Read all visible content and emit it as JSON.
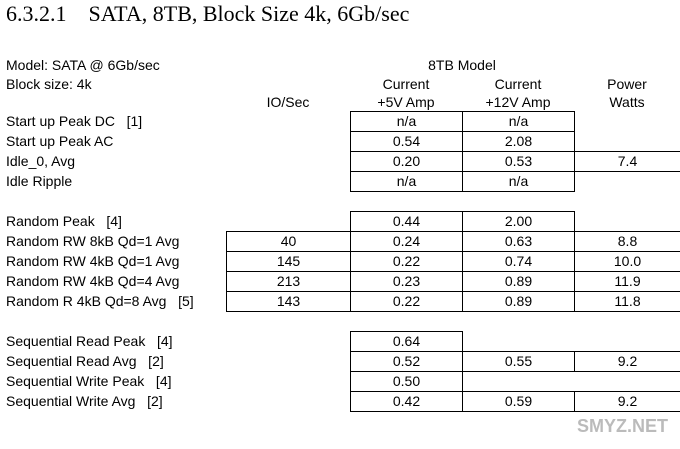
{
  "title": "6.3.2.1    SATA, 8TB, Block Size 4k, 6Gb/sec",
  "header": {
    "model": "Model: SATA @ 6Gb/sec",
    "group": "8TB Model",
    "block": "Block size: 4k",
    "columns": [
      {
        "top": null,
        "bottom": "IO/Sec"
      },
      {
        "top": "Current",
        "bottom": "+5V Amp"
      },
      {
        "top": "Current",
        "bottom": "+12V Amp"
      },
      {
        "top": "Power",
        "bottom": "Watts"
      }
    ]
  },
  "groups": [
    [
      {
        "label": "Start up Peak DC   [1]",
        "cells": [
          null,
          "n/a",
          "n/a",
          null
        ]
      },
      {
        "label": "Start up Peak AC",
        "cells": [
          null,
          "0.54",
          "2.08",
          null
        ]
      },
      {
        "label": "Idle_0, Avg",
        "cells": [
          null,
          "0.20",
          "0.53",
          "7.4"
        ]
      },
      {
        "label": "Idle Ripple",
        "cells": [
          null,
          "n/a",
          "n/a",
          null
        ]
      }
    ],
    [
      {
        "label": "Random Peak   [4]",
        "cells": [
          null,
          "0.44",
          "2.00",
          null
        ]
      },
      {
        "label": "Random RW 8kB Qd=1 Avg",
        "cells": [
          "40",
          "0.24",
          "0.63",
          "8.8"
        ]
      },
      {
        "label": "Random RW 4kB Qd=1 Avg",
        "cells": [
          "145",
          "0.22",
          "0.74",
          "10.0"
        ]
      },
      {
        "label": "Random RW 4kB Qd=4 Avg",
        "cells": [
          "213",
          "0.23",
          "0.89",
          "11.9"
        ]
      },
      {
        "label": "Random R 4kB Qd=8 Avg   [5]",
        "cells": [
          "143",
          "0.22",
          "0.89",
          "11.8"
        ]
      }
    ],
    [
      {
        "label": "Sequential Read Peak   [4]",
        "cells": [
          null,
          "0.64",
          null,
          null
        ]
      },
      {
        "label": "Sequential Read Avg   [2]",
        "cells": [
          null,
          "0.52",
          "0.55",
          "9.2"
        ]
      },
      {
        "label": "Sequential Write Peak   [4]",
        "cells": [
          null,
          "0.50",
          null,
          null
        ]
      },
      {
        "label": "Sequential Write Avg   [2]",
        "cells": [
          null,
          "0.42",
          "0.59",
          "9.2"
        ]
      }
    ]
  ],
  "watermark": "SMYZ.NET"
}
